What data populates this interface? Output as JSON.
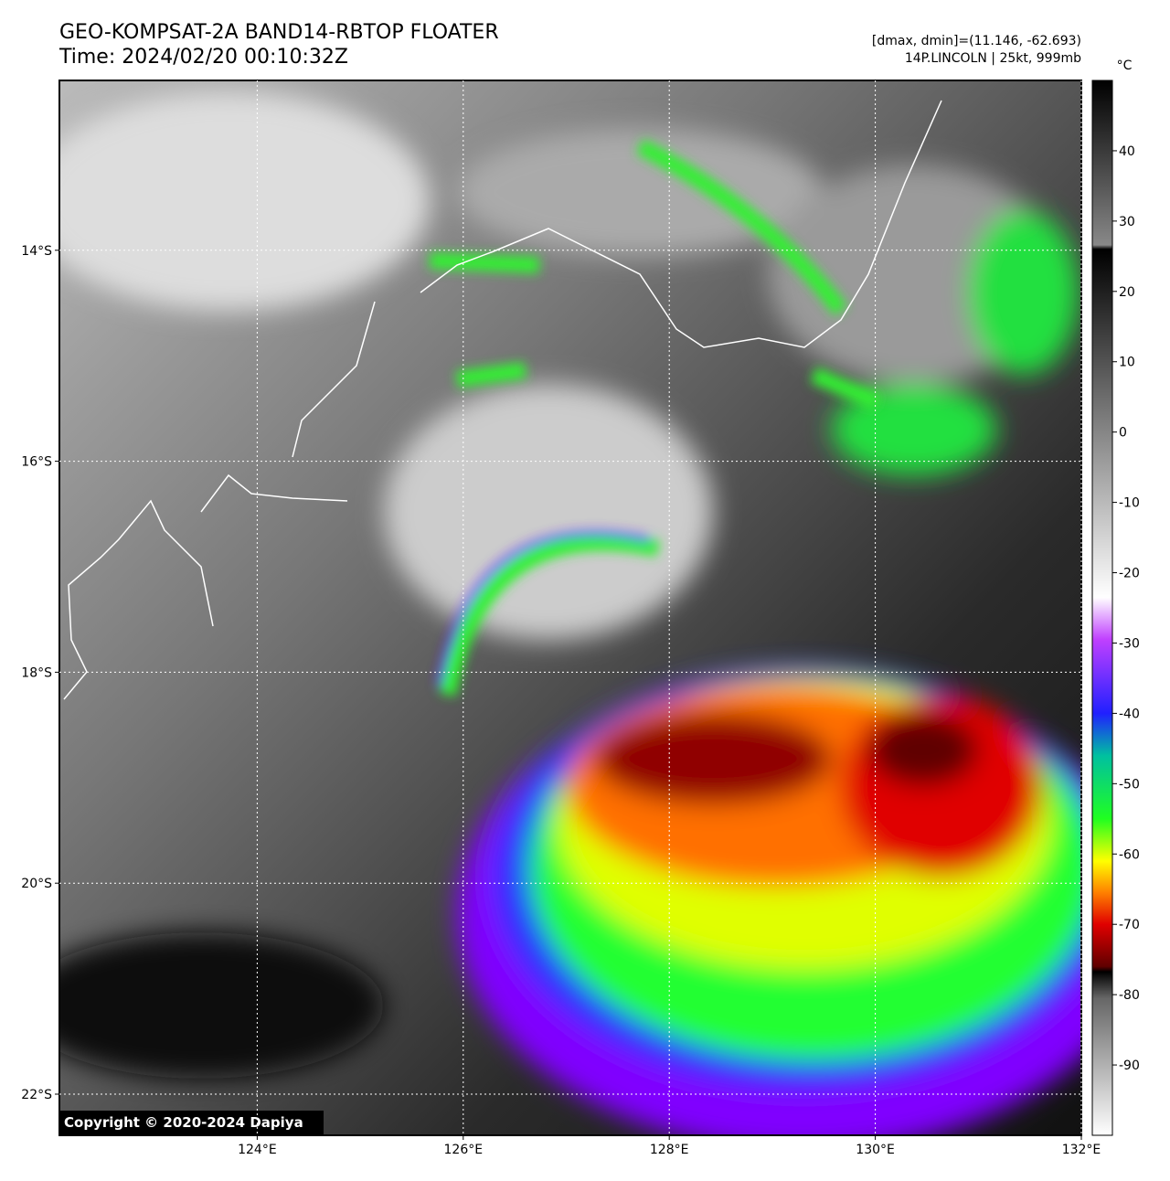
{
  "header": {
    "title": "GEO-KOMPSAT-2A BAND14-RBTOP FLOATER",
    "time": "Time: 2024/02/20 00:10:32Z",
    "dmax_dmin": "[dmax, dmin]=(11.146, -62.693)",
    "storm": "14P.LINCOLN | 25kt, 999mb"
  },
  "map": {
    "lon_range": [
      122.08,
      132
    ],
    "lat_range": [
      -22.39,
      -12.39
    ],
    "lon_ticks": [
      {
        "value": 124,
        "label": "124°E"
      },
      {
        "value": 126,
        "label": "126°E"
      },
      {
        "value": 128,
        "label": "128°E"
      },
      {
        "value": 130,
        "label": "130°E"
      },
      {
        "value": 132,
        "label": "132°E"
      }
    ],
    "lat_ticks": [
      {
        "value": -14,
        "label": "14°S"
      },
      {
        "value": -16,
        "label": "16°S"
      },
      {
        "value": -18,
        "label": "18°S"
      },
      {
        "value": -20,
        "label": "20°S"
      },
      {
        "value": -22,
        "label": "22°S"
      }
    ],
    "grid": true
  },
  "colorbar": {
    "unit": "°C",
    "lim": [
      -100,
      50
    ],
    "ticks": [
      40,
      30,
      20,
      10,
      0,
      -10,
      -20,
      -30,
      -40,
      -50,
      -60,
      -70,
      -80,
      -90
    ]
  },
  "copyright": "Copyright © 2020-2024 Dapiya"
}
